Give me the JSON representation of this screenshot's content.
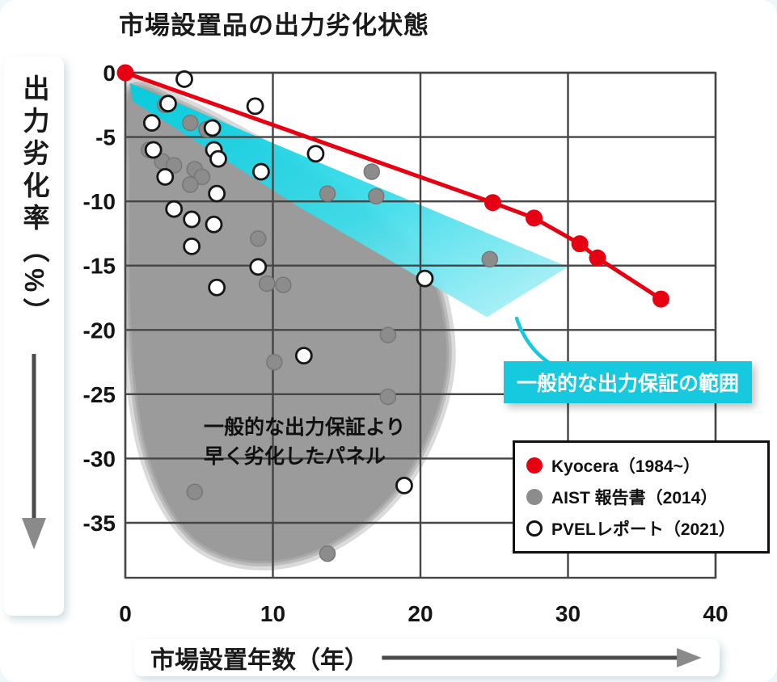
{
  "title": "市場設置品の出力劣化状態",
  "axes": {
    "y_label": "出力劣化率（%）",
    "x_label": "市場設置年数（年）"
  },
  "annotations": {
    "warranty_range": "一般的な出力保証の範囲",
    "degraded_line1": "一般的な出力保証より",
    "degraded_line2": "早く劣化したパネル"
  },
  "legend": {
    "items": [
      {
        "label": "Kyocera（1984~）",
        "marker": "filled",
        "color": "#e60012"
      },
      {
        "label": "AIST 報告書（2014）",
        "marker": "filled",
        "color": "#8c8c8c"
      },
      {
        "label": "PVELレポート（2021）",
        "marker": "open",
        "color": "#ffffff"
      }
    ]
  },
  "colors": {
    "kyocera_red": "#e60012",
    "aist_gray": "#8c8c8c",
    "band_cyan": "#00cddf",
    "band_cyan_light": "#bdf3f8",
    "label_box_cyan": "#17c9de",
    "grid": "#454545",
    "blob_gray": "#9b9b9b"
  },
  "chart_data": {
    "type": "scatter",
    "title": "市場設置品の出力劣化状態",
    "xlabel": "市場設置年数（年）",
    "ylabel": "出力劣化率（%）",
    "xlim": [
      0,
      40
    ],
    "ylim": [
      -39,
      0
    ],
    "x_ticks": [
      0,
      10,
      20,
      30,
      40
    ],
    "y_ticks": [
      0,
      -5,
      -10,
      -15,
      -20,
      -25,
      -30,
      -35
    ],
    "grid": true,
    "legend_position": "lower right",
    "series": [
      {
        "name": "Kyocera（1984~）",
        "type": "line+scatter",
        "color": "#e60012",
        "points": [
          [
            0,
            0
          ],
          [
            24.9,
            -10.1
          ],
          [
            27.7,
            -11.3
          ],
          [
            30.8,
            -13.3
          ],
          [
            32,
            -14.4
          ],
          [
            36.3,
            -17.6
          ]
        ]
      },
      {
        "name": "AIST 報告書（2014）",
        "type": "scatter",
        "color": "#8c8c8c",
        "points": [
          [
            2.7,
            -2.5
          ],
          [
            4.4,
            -3.9
          ],
          [
            5.5,
            -4.4
          ],
          [
            1.6,
            -6.0
          ],
          [
            2.5,
            -6.9
          ],
          [
            3.3,
            -7.2
          ],
          [
            4.7,
            -7.5
          ],
          [
            5.2,
            -8.1
          ],
          [
            4.4,
            -8.7
          ],
          [
            16.7,
            -7.7
          ],
          [
            13.7,
            -9.4
          ],
          [
            17.0,
            -9.6
          ],
          [
            9.0,
            -12.9
          ],
          [
            24.7,
            -14.5
          ],
          [
            9.6,
            -16.4
          ],
          [
            10.7,
            -16.5
          ],
          [
            17.8,
            -20.4
          ],
          [
            10.1,
            -22.5
          ],
          [
            17.8,
            -25.2
          ],
          [
            4.7,
            -32.6
          ],
          [
            13.7,
            -37.4
          ]
        ]
      },
      {
        "name": "PVELレポート（2021）",
        "type": "scatter-open",
        "color": "#ffffff",
        "stroke": "#161616",
        "points": [
          [
            4.0,
            -0.5
          ],
          [
            2.9,
            -2.4
          ],
          [
            8.8,
            -2.6
          ],
          [
            1.8,
            -3.9
          ],
          [
            5.9,
            -4.3
          ],
          [
            1.9,
            -6.0
          ],
          [
            6.0,
            -6.0
          ],
          [
            6.3,
            -6.7
          ],
          [
            12.9,
            -6.3
          ],
          [
            9.2,
            -7.7
          ],
          [
            2.7,
            -8.1
          ],
          [
            6.2,
            -9.4
          ],
          [
            3.3,
            -10.6
          ],
          [
            4.5,
            -11.4
          ],
          [
            6.0,
            -11.8
          ],
          [
            4.5,
            -13.5
          ],
          [
            9.0,
            -15.1
          ],
          [
            20.3,
            -16.0
          ],
          [
            6.2,
            -16.7
          ],
          [
            12.1,
            -22.0
          ],
          [
            18.9,
            -32.1
          ]
        ]
      }
    ],
    "warranty_band_polygon": [
      [
        0.3,
        -0.8
      ],
      [
        30.0,
        -15.1
      ],
      [
        24.5,
        -19.0
      ],
      [
        12.0,
        -10.6
      ],
      [
        0.5,
        -2.2
      ]
    ],
    "degraded_blob_outline": [
      [
        0.3,
        -1.3
      ],
      [
        4.0,
        -2.6
      ],
      [
        9.0,
        -5.6
      ],
      [
        14.0,
        -9.0
      ],
      [
        18.0,
        -12.3
      ],
      [
        20.6,
        -15.5
      ],
      [
        21.6,
        -19.0
      ],
      [
        21.8,
        -23.0
      ],
      [
        20.8,
        -27.5
      ],
      [
        18.8,
        -31.8
      ],
      [
        15.8,
        -35.3
      ],
      [
        12.0,
        -37.6
      ],
      [
        8.2,
        -38.0
      ],
      [
        5.0,
        -36.6
      ],
      [
        2.8,
        -33.5
      ],
      [
        1.3,
        -29.0
      ],
      [
        0.5,
        -23.0
      ],
      [
        0.2,
        -16.0
      ],
      [
        0.2,
        -8.0
      ]
    ]
  }
}
